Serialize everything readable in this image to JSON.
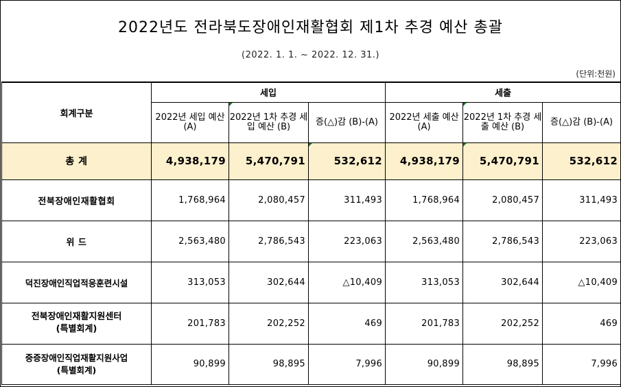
{
  "title": "2022년도 전라북도장애인재활협회 제1차 추경 예산 총괄",
  "period": "(2022. 1. 1. ~ 2022. 12. 31.)",
  "unit": "(단위:천원)",
  "header": {
    "category": "회계구분",
    "revenue": "세입",
    "expenditure": "세출",
    "rev_budget": "2022년 세입 예산(A)",
    "rev_supp": "2022년 1차 추경 세입 예산 (B)",
    "rev_diff": "증(△)감 (B)-(A)",
    "exp_budget": "2022년 세출 예산(A)",
    "exp_supp": "2022년 1차 추경 세출 예산 (B)",
    "exp_diff": "증(△)감 (B)-(A)"
  },
  "rows": [
    {
      "name": "총 계",
      "name2": "",
      "rev_a": "4,938,179",
      "rev_b": "5,470,791",
      "rev_d": "532,612",
      "exp_a": "4,938,179",
      "exp_b": "5,470,791",
      "exp_d": "532,612"
    },
    {
      "name": "전북장애인재활협회",
      "name2": "",
      "rev_a": "1,768,964",
      "rev_b": "2,080,457",
      "rev_d": "311,493",
      "exp_a": "1,768,964",
      "exp_b": "2,080,457",
      "exp_d": "311,493"
    },
    {
      "name": "위 드",
      "name2": "",
      "rev_a": "2,563,480",
      "rev_b": "2,786,543",
      "rev_d": "223,063",
      "exp_a": "2,563,480",
      "exp_b": "2,786,543",
      "exp_d": "223,063"
    },
    {
      "name": "덕진장애인직업적응훈련시설",
      "name2": "",
      "rev_a": "313,053",
      "rev_b": "302,644",
      "rev_d": "△10,409",
      "exp_a": "313,053",
      "exp_b": "302,644",
      "exp_d": "△10,409"
    },
    {
      "name": "전북장애인재활지원센터",
      "name2": "(특별회계)",
      "rev_a": "201,783",
      "rev_b": "202,252",
      "rev_d": "469",
      "exp_a": "201,783",
      "exp_b": "202,252",
      "exp_d": "469"
    },
    {
      "name": "중증장애인직업재활지원사업",
      "name2": "(특별회계)",
      "rev_a": "90,899",
      "rev_b": "98,895",
      "rev_d": "7,996",
      "exp_a": "90,899",
      "exp_b": "98,895",
      "exp_d": "7,996"
    }
  ]
}
